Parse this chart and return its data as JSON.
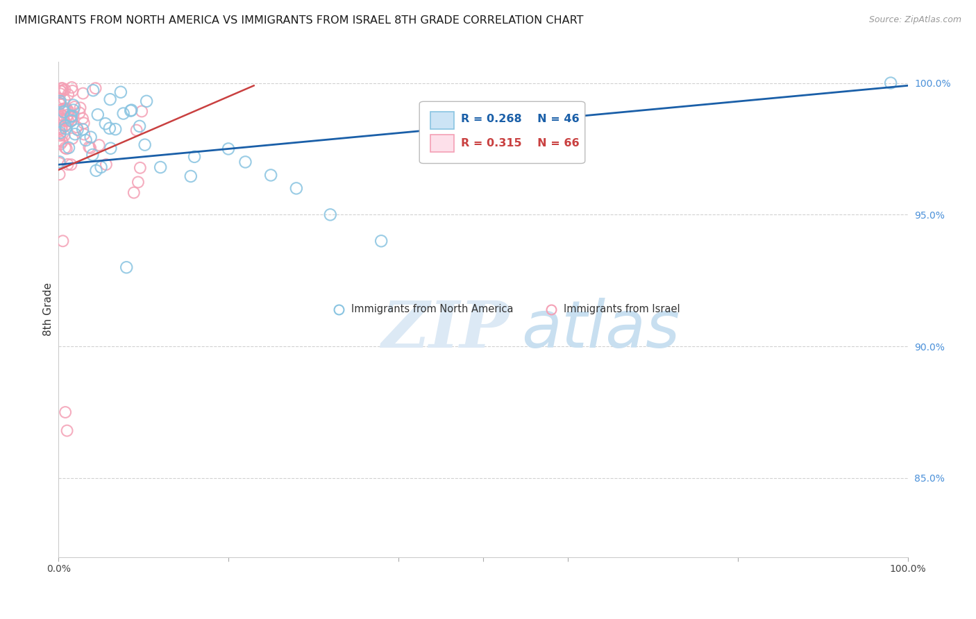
{
  "title": "IMMIGRANTS FROM NORTH AMERICA VS IMMIGRANTS FROM ISRAEL 8TH GRADE CORRELATION CHART",
  "source": "Source: ZipAtlas.com",
  "ylabel": "8th Grade",
  "y_ticks": [
    0.85,
    0.9,
    0.95,
    1.0
  ],
  "y_tick_labels": [
    "85.0%",
    "90.0%",
    "95.0%",
    "100.0%"
  ],
  "legend1_label": "Immigrants from North America",
  "legend2_label": "Immigrants from Israel",
  "R_blue": 0.268,
  "N_blue": 46,
  "R_pink": 0.315,
  "N_pink": 66,
  "blue_color": "#89c4e1",
  "pink_color": "#f4a0b5",
  "blue_line_color": "#1a5fa8",
  "pink_line_color": "#c94040",
  "watermark_zip": "ZIP",
  "watermark_atlas": "atlas",
  "watermark_zip_color": "#dce9f5",
  "watermark_atlas_color": "#c8dff0",
  "background_color": "#ffffff",
  "grid_color": "#cccccc",
  "right_axis_color": "#4a90d9",
  "title_fontsize": 11.5
}
